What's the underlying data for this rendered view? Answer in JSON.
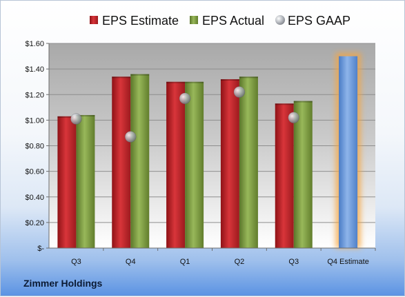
{
  "company": "Zimmer Holdings",
  "chart_data": {
    "type": "bar",
    "categories": [
      "Q3",
      "Q4",
      "Q1",
      "Q2",
      "Q3",
      "Q4 Estimate"
    ],
    "series": [
      {
        "name": "EPS Estimate",
        "color": "#c0282d",
        "values": [
          1.03,
          1.34,
          1.3,
          1.32,
          1.13,
          null
        ]
      },
      {
        "name": "EPS Actual",
        "color": "#7c9b3f",
        "values": [
          1.04,
          1.36,
          1.3,
          1.34,
          1.15,
          null
        ]
      },
      {
        "name": "EPS GAAP",
        "color": "#a8adb5",
        "marker": "circle",
        "values": [
          1.01,
          0.87,
          1.17,
          1.22,
          1.02,
          null
        ]
      }
    ],
    "estimate_bar": {
      "category": "Q4 Estimate",
      "value": 1.5,
      "color": "#6f9ad8",
      "glow_color": "#f6a641"
    },
    "y_ticks": [
      "$-",
      "$0.20",
      "$0.40",
      "$0.60",
      "$0.80",
      "$1.00",
      "$1.20",
      "$1.40",
      "$1.60"
    ],
    "y_tick_values": [
      0,
      0.2,
      0.4,
      0.6,
      0.8,
      1.0,
      1.2,
      1.4,
      1.6
    ],
    "ylim": [
      0,
      1.6
    ],
    "grid": true,
    "legend_position": "top"
  }
}
